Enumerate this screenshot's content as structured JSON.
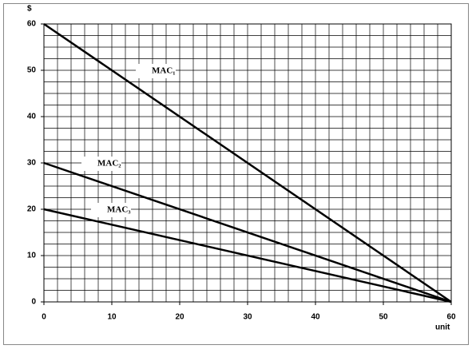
{
  "chart_data": {
    "type": "line",
    "x": [
      0,
      60
    ],
    "series": [
      {
        "name": "MAC₁",
        "color": "#000000",
        "values": [
          60,
          0
        ]
      },
      {
        "name": "MAC₂",
        "color": "#000000",
        "values": [
          30,
          0
        ]
      },
      {
        "name": "MAC₃",
        "color": "#000000",
        "values": [
          20,
          0
        ]
      }
    ],
    "xlabel": "unit",
    "ylabel": "$",
    "xlim": [
      0,
      60
    ],
    "ylim": [
      0,
      60
    ],
    "xticks": [
      0,
      10,
      20,
      30,
      40,
      50,
      60
    ],
    "yticks": [
      0,
      10,
      20,
      30,
      40,
      50,
      60
    ],
    "grid": true,
    "minor_grid": {
      "x": 2,
      "y": 2.5
    }
  }
}
